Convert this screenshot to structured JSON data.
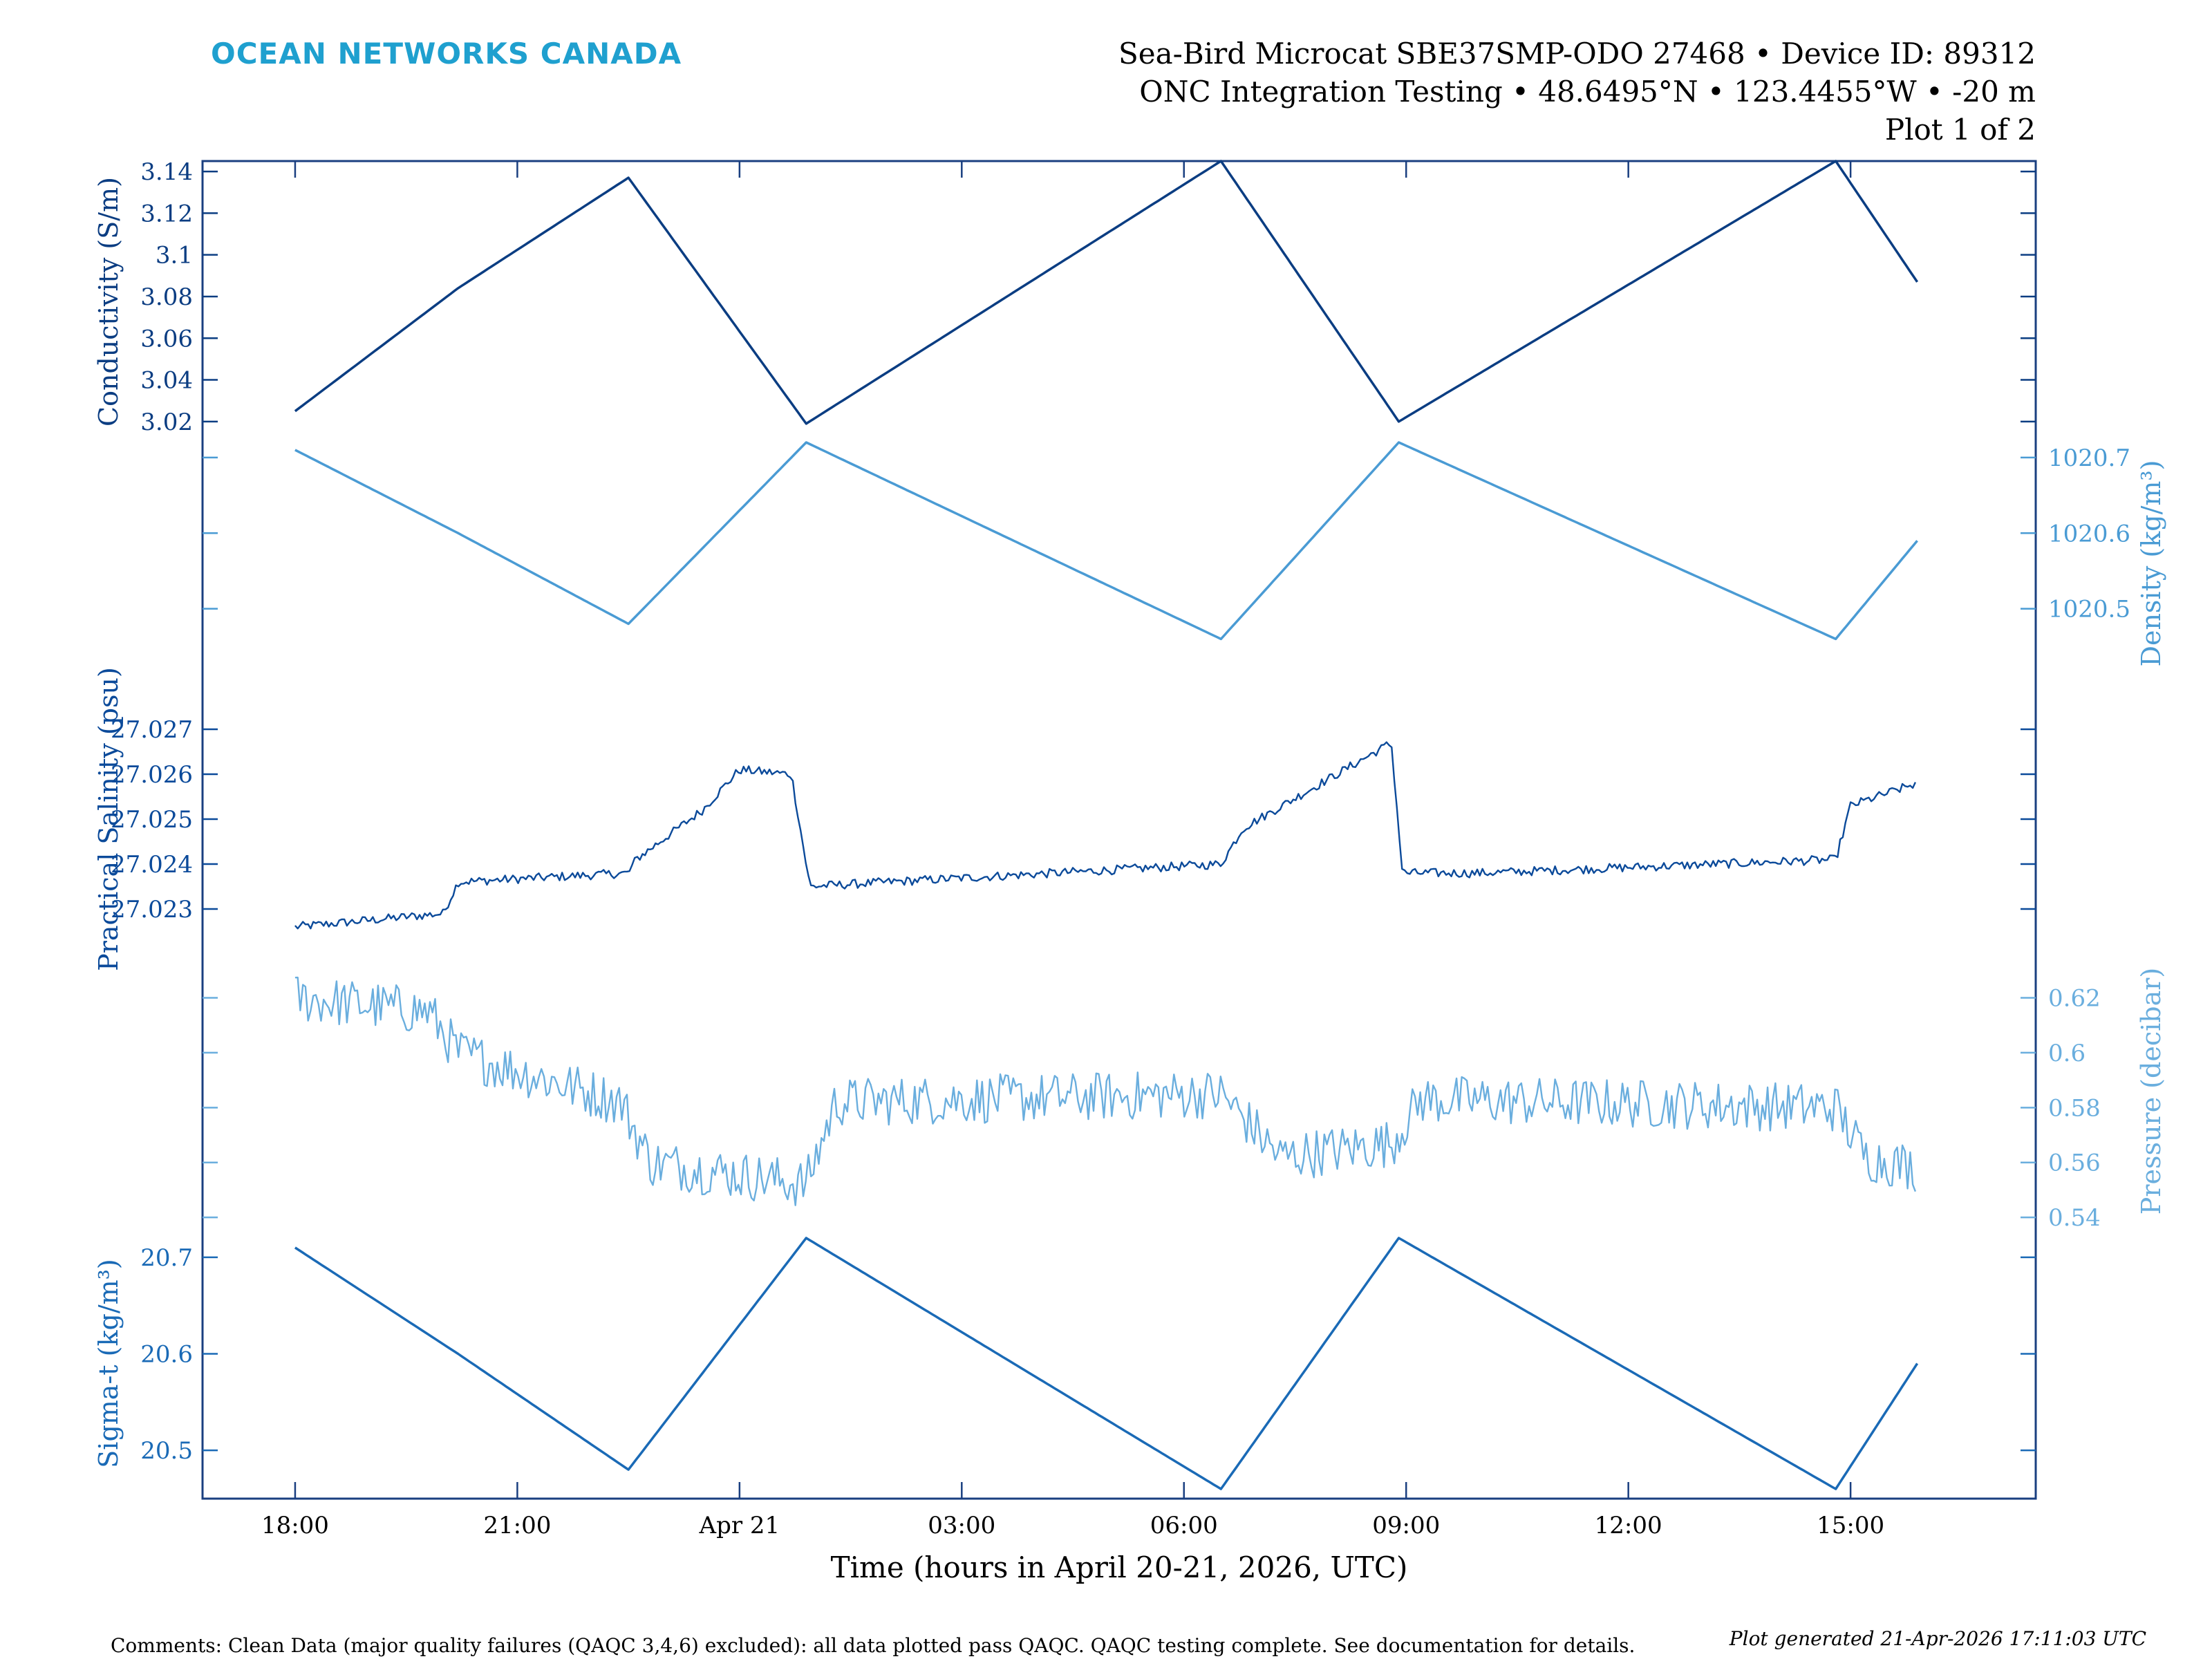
{
  "header": {
    "brand": "OCEAN NETWORKS CANADA",
    "line1": "Sea-Bird Microcat SBE37SMP-ODO 27468 • Device ID: 89312",
    "line2": "ONC Integration Testing • 48.6495°N • 123.4455°W • -20 m",
    "line3": "Plot 1 of 2"
  },
  "footer": {
    "comments": "Comments: Clean Data (major quality failures (QAQC 3,4,6) excluded): all data plotted pass QAQC. QAQC testing complete. See documentation for details.",
    "generated": "Plot generated 21-Apr-2026 17:11:03 UTC"
  },
  "chart_data": {
    "type": "line",
    "xlabel": "Time (hours in April 20-21, 2026, UTC)",
    "xlim": [
      -1.25,
      23.5
    ],
    "x_ticks": [
      {
        "hour": 0,
        "label": "18:00"
      },
      {
        "hour": 3,
        "label": "21:00"
      },
      {
        "hour": 6,
        "label": "Apr 21"
      },
      {
        "hour": 9,
        "label": "03:00"
      },
      {
        "hour": 12,
        "label": "06:00"
      },
      {
        "hour": 15,
        "label": "09:00"
      },
      {
        "hour": 18,
        "label": "12:00"
      },
      {
        "hour": 21,
        "label": "15:00"
      }
    ],
    "series": [
      {
        "name": "Conductivity",
        "ylabel": "Conductivity (S/m)",
        "axis_side": "left",
        "color": "#0b3d82",
        "ylim": [
          3.01,
          3.145
        ],
        "ticks": [
          3.02,
          3.04,
          3.06,
          3.08,
          3.1,
          3.12,
          3.14
        ],
        "tick_labels": [
          "3.02",
          "3.04",
          "3.06",
          "3.08",
          "3.1",
          "3.12",
          "3.14"
        ],
        "noise": 0,
        "knots": [
          [
            0,
            3.025
          ],
          [
            2.2,
            3.084
          ],
          [
            4.5,
            3.137
          ],
          [
            6.9,
            3.019
          ],
          [
            12.5,
            3.145
          ],
          [
            14.9,
            3.02
          ],
          [
            20.8,
            3.145
          ],
          [
            21.9,
            3.087
          ]
        ]
      },
      {
        "name": "Density",
        "ylabel": "Density (kg/m³)",
        "axis_side": "right",
        "color": "#4a9bd4",
        "ylim": [
          1020.4,
          1020.72
        ],
        "ticks": [
          1020.5,
          1020.6,
          1020.7
        ],
        "tick_labels": [
          "1020.5",
          "1020.6",
          "1020.7"
        ],
        "noise": 0,
        "knots": [
          [
            0,
            1020.71
          ],
          [
            2.2,
            1020.6
          ],
          [
            4.5,
            1020.48
          ],
          [
            6.9,
            1020.72
          ],
          [
            12.5,
            1020.46
          ],
          [
            14.9,
            1020.72
          ],
          [
            20.8,
            1020.46
          ],
          [
            21.9,
            1020.59
          ]
        ]
      },
      {
        "name": "Practical Salinity",
        "ylabel": "Practical Salinity (psu)",
        "axis_side": "left",
        "color": "#0b4a9a",
        "ylim": [
          27.022,
          27.028
        ],
        "ticks": [
          27.023,
          27.024,
          27.025,
          27.026,
          27.027
        ],
        "tick_labels": [
          "27.023",
          "27.024",
          "27.025",
          "27.026",
          "27.027"
        ],
        "noise": 0.0001,
        "knots": [
          [
            0,
            27.0226
          ],
          [
            2.0,
            27.0229
          ],
          [
            2.2,
            27.0236
          ],
          [
            4.5,
            27.0238
          ],
          [
            4.6,
            27.0241
          ],
          [
            5.5,
            27.0252
          ],
          [
            6.0,
            27.0261
          ],
          [
            6.7,
            27.026
          ],
          [
            6.95,
            27.0235
          ],
          [
            8,
            27.0236
          ],
          [
            12.5,
            27.024
          ],
          [
            12.8,
            27.0248
          ],
          [
            14.8,
            27.0267
          ],
          [
            14.95,
            27.0238
          ],
          [
            16,
            27.0238
          ],
          [
            20.8,
            27.0241
          ],
          [
            21,
            27.0253
          ],
          [
            21.9,
            27.0258
          ]
        ]
      },
      {
        "name": "Pressure",
        "ylabel": "Pressure (decibar)",
        "axis_side": "right",
        "color": "#6aaede",
        "ylim": [
          0.536,
          0.636
        ],
        "ticks": [
          0.54,
          0.56,
          0.58,
          0.6,
          0.62
        ],
        "tick_labels": [
          "0.54",
          "0.56",
          "0.58",
          "0.6",
          "0.62"
        ],
        "noise": 0.009,
        "knots": [
          [
            0,
            0.62
          ],
          [
            1.8,
            0.615
          ],
          [
            2.2,
            0.6
          ],
          [
            4.4,
            0.582
          ],
          [
            4.8,
            0.56
          ],
          [
            6.9,
            0.552
          ],
          [
            7.3,
            0.582
          ],
          [
            12.5,
            0.585
          ],
          [
            13.3,
            0.562
          ],
          [
            14.8,
            0.567
          ],
          [
            15.2,
            0.583
          ],
          [
            20.8,
            0.58
          ],
          [
            21.2,
            0.562
          ],
          [
            21.9,
            0.558
          ]
        ]
      },
      {
        "name": "Sigma-t",
        "ylabel": "Sigma-t (kg/m³)",
        "axis_side": "left",
        "color": "#1a6ab6",
        "ylim": [
          20.45,
          20.73
        ],
        "ticks": [
          20.5,
          20.6,
          20.7
        ],
        "tick_labels": [
          "20.5",
          "20.6",
          "20.7"
        ],
        "noise": 0,
        "knots": [
          [
            0,
            20.71
          ],
          [
            2.2,
            20.6
          ],
          [
            4.5,
            20.48
          ],
          [
            6.9,
            20.72
          ],
          [
            12.5,
            20.46
          ],
          [
            14.9,
            20.72
          ],
          [
            20.8,
            20.46
          ],
          [
            21.9,
            20.59
          ]
        ]
      }
    ]
  }
}
